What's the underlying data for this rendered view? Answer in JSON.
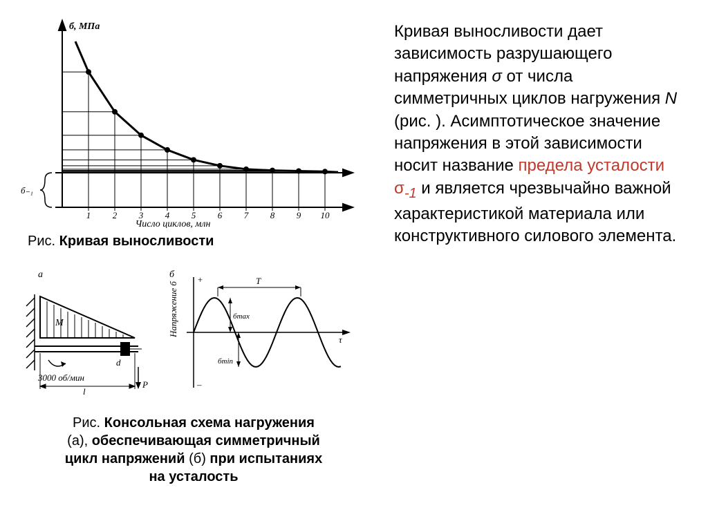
{
  "chart1": {
    "type": "line",
    "y_axis_label": "б, МПа",
    "x_axis_label": "Число циклов, млн",
    "sigma_label": "б₋₁",
    "x_ticks": [
      1,
      2,
      3,
      4,
      5,
      6,
      7,
      8,
      9,
      10
    ],
    "curve": [
      {
        "x": 0.5,
        "y": 280
      },
      {
        "x": 1,
        "y": 228
      },
      {
        "x": 2,
        "y": 160
      },
      {
        "x": 3,
        "y": 120
      },
      {
        "x": 4,
        "y": 95
      },
      {
        "x": 5,
        "y": 78
      },
      {
        "x": 6,
        "y": 68
      },
      {
        "x": 7,
        "y": 62
      },
      {
        "x": 8,
        "y": 60
      },
      {
        "x": 9,
        "y": 59
      },
      {
        "x": 10,
        "y": 58
      },
      {
        "x": 10.5,
        "y": 57
      }
    ],
    "asymptote_y": 56,
    "grid_color": "#000000",
    "curve_color": "#000000",
    "curve_width": 3,
    "point_radius": 4,
    "background": "#ffffff"
  },
  "caption1": {
    "prefix": "Рис.    ",
    "bold": "Кривая выносливости"
  },
  "diagram_a": {
    "label_a": "а",
    "label_M": "М",
    "label_rpm": "3000 об/мин",
    "label_l": "l",
    "label_d": "d",
    "label_P": "P"
  },
  "diagram_b": {
    "label_b": "б",
    "y_label": "Напряжение б",
    "plus": "+",
    "minus": "–",
    "label_T": "T",
    "label_smax": "бmax",
    "label_smin": "бmin",
    "label_tau": "τ",
    "sine_color": "#000000",
    "sine_width": 2
  },
  "caption2": {
    "line1_prefix": "Рис.   ",
    "line1_bold": "Консольная схема нагружения",
    "line2_plain1": "(а), ",
    "line2_bold1": "обеспечивающая симметричный",
    "line3_bold": "цикл напряжений",
    "line3_plain": " (б) ",
    "line3_bold2": "при испытаниях",
    "line4_bold": "на усталость"
  },
  "paragraph": {
    "t1": "Кривая выносливости дает зависимость разрушающего напряжения ",
    "sigma": "σ",
    "t2": " от числа симметричных циклов нагружения ",
    "N": "N",
    "t3": " (рис.    ). Асимптотическое значение напряжения в этой зависимости носит название ",
    "hl": "предела усталости σ",
    "hl_sub": "-1",
    "t4": " и является чрезвычайно важной характеристикой материала или конструктивного силового элемента."
  }
}
